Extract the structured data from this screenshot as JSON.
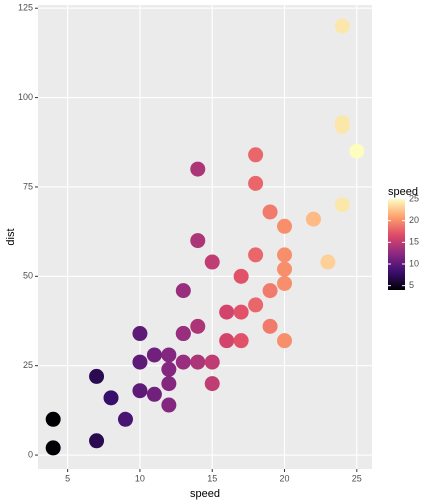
{
  "chart_data": {
    "type": "scatter",
    "xlabel": "speed",
    "ylabel": "dist",
    "x": [
      4,
      4,
      7,
      7,
      8,
      9,
      10,
      10,
      10,
      11,
      11,
      12,
      12,
      12,
      12,
      13,
      13,
      13,
      13,
      14,
      14,
      14,
      14,
      15,
      15,
      15,
      16,
      16,
      17,
      17,
      17,
      18,
      18,
      18,
      18,
      19,
      19,
      19,
      20,
      20,
      20,
      20,
      20,
      22,
      23,
      24,
      24,
      24,
      24,
      25
    ],
    "values": [
      2,
      10,
      4,
      22,
      16,
      10,
      18,
      26,
      34,
      17,
      28,
      14,
      20,
      24,
      28,
      26,
      34,
      34,
      46,
      26,
      36,
      60,
      80,
      20,
      26,
      54,
      32,
      40,
      32,
      40,
      50,
      42,
      56,
      76,
      84,
      36,
      46,
      68,
      32,
      48,
      52,
      56,
      64,
      66,
      54,
      70,
      92,
      93,
      120,
      85
    ],
    "xlim": [
      2.95,
      26.05
    ],
    "xticks": [
      5,
      10,
      15,
      20,
      25
    ],
    "ylim": [
      -3.9,
      125.9
    ],
    "yticks": [
      0,
      25,
      50,
      75,
      100,
      125
    ],
    "grid": true,
    "colorbar": {
      "title": "speed",
      "lim": [
        4,
        25
      ],
      "ticks": [
        5,
        10,
        15,
        20,
        25
      ],
      "colors": [
        "#000004",
        "#3b0f70",
        "#8c2981",
        "#de4968",
        "#fe9f6d",
        "#fcfdbf"
      ]
    }
  }
}
